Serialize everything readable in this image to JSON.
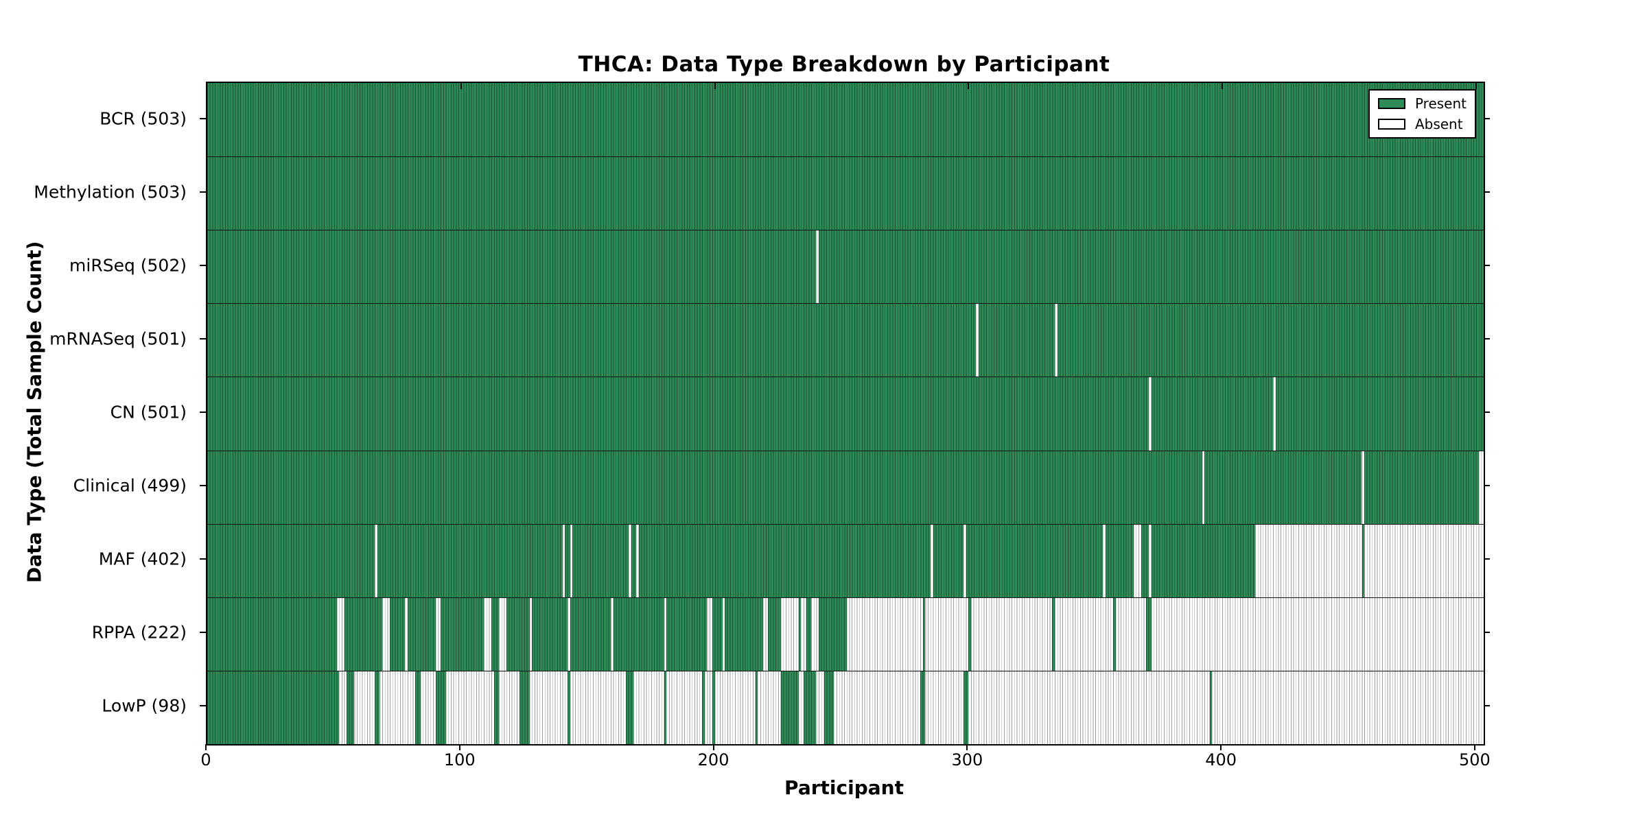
{
  "colors": {
    "present_fill": "#2e8b57",
    "present_edge": "#1b5233",
    "absent_fill": "#ffffff",
    "absent_edge": "#9e9e9e",
    "row_separator": "#111111",
    "axis": "#000000",
    "background": "#ffffff"
  },
  "chart_data": {
    "type": "heatmap",
    "title": "THCA: Data Type Breakdown by Participant",
    "xlabel": "Participant",
    "ylabel": "Data Type (Total Sample Count)",
    "x_range": [
      0,
      503
    ],
    "x_ticks": [
      0,
      100,
      200,
      300,
      400,
      500
    ],
    "grid": false,
    "legend_position": "upper right",
    "legend": [
      "Present",
      "Absent"
    ],
    "cell_values": {
      "present": 1,
      "absent": 0
    },
    "rows": [
      {
        "label": "BCR (503)",
        "name": "BCR",
        "count": 503,
        "present_ranges": [
          [
            0,
            503
          ]
        ]
      },
      {
        "label": "Methylation (503)",
        "name": "Methylation",
        "count": 503,
        "present_ranges": [
          [
            0,
            503
          ]
        ]
      },
      {
        "label": "miRSeq (502)",
        "name": "miRSeq",
        "count": 502,
        "present_ranges": [
          [
            0,
            240
          ],
          [
            241,
            503
          ]
        ]
      },
      {
        "label": "mRNASeq (501)",
        "name": "mRNASeq",
        "count": 501,
        "present_ranges": [
          [
            0,
            303
          ],
          [
            304,
            334
          ],
          [
            335,
            503
          ]
        ]
      },
      {
        "label": "CN (501)",
        "name": "CN",
        "count": 501,
        "present_ranges": [
          [
            0,
            371
          ],
          [
            372,
            420
          ],
          [
            421,
            503
          ]
        ]
      },
      {
        "label": "Clinical (499)",
        "name": "Clinical",
        "count": 499,
        "present_ranges": [
          [
            0,
            392
          ],
          [
            393,
            455
          ],
          [
            456,
            501
          ]
        ]
      },
      {
        "label": "MAF (402)",
        "name": "MAF",
        "count": 402,
        "present_ranges": [
          [
            0,
            66
          ],
          [
            67,
            140
          ],
          [
            141,
            143
          ],
          [
            144,
            166
          ],
          [
            167,
            169
          ],
          [
            170,
            285
          ],
          [
            286,
            298
          ],
          [
            299,
            353
          ],
          [
            354,
            365
          ],
          [
            368,
            371
          ],
          [
            372,
            413
          ],
          [
            455,
            456
          ]
        ]
      },
      {
        "label": "RPPA (222)",
        "name": "RPPA",
        "count": 222,
        "present_ranges": [
          [
            0,
            51
          ],
          [
            54,
            69
          ],
          [
            72,
            78
          ],
          [
            79,
            90
          ],
          [
            92,
            109
          ],
          [
            112,
            115
          ],
          [
            118,
            127
          ],
          [
            128,
            142
          ],
          [
            143,
            159
          ],
          [
            160,
            180
          ],
          [
            181,
            197
          ],
          [
            199,
            203
          ],
          [
            204,
            219
          ],
          [
            221,
            226
          ],
          [
            233,
            234
          ],
          [
            236,
            238
          ],
          [
            241,
            252
          ],
          [
            282,
            283
          ],
          [
            300,
            301
          ],
          [
            333,
            334
          ],
          [
            357,
            358
          ],
          [
            370,
            372
          ]
        ]
      },
      {
        "label": "LowP (98)",
        "name": "LowP",
        "count": 98,
        "present_ranges": [
          [
            0,
            52
          ],
          [
            55,
            58
          ],
          [
            66,
            68
          ],
          [
            82,
            84
          ],
          [
            90,
            94
          ],
          [
            113,
            115
          ],
          [
            123,
            127
          ],
          [
            142,
            143
          ],
          [
            165,
            168
          ],
          [
            180,
            181
          ],
          [
            195,
            196
          ],
          [
            199,
            200
          ],
          [
            216,
            217
          ],
          [
            226,
            233
          ],
          [
            235,
            240
          ],
          [
            243,
            247
          ],
          [
            281,
            283
          ],
          [
            298,
            300
          ],
          [
            395,
            396
          ]
        ]
      }
    ]
  }
}
